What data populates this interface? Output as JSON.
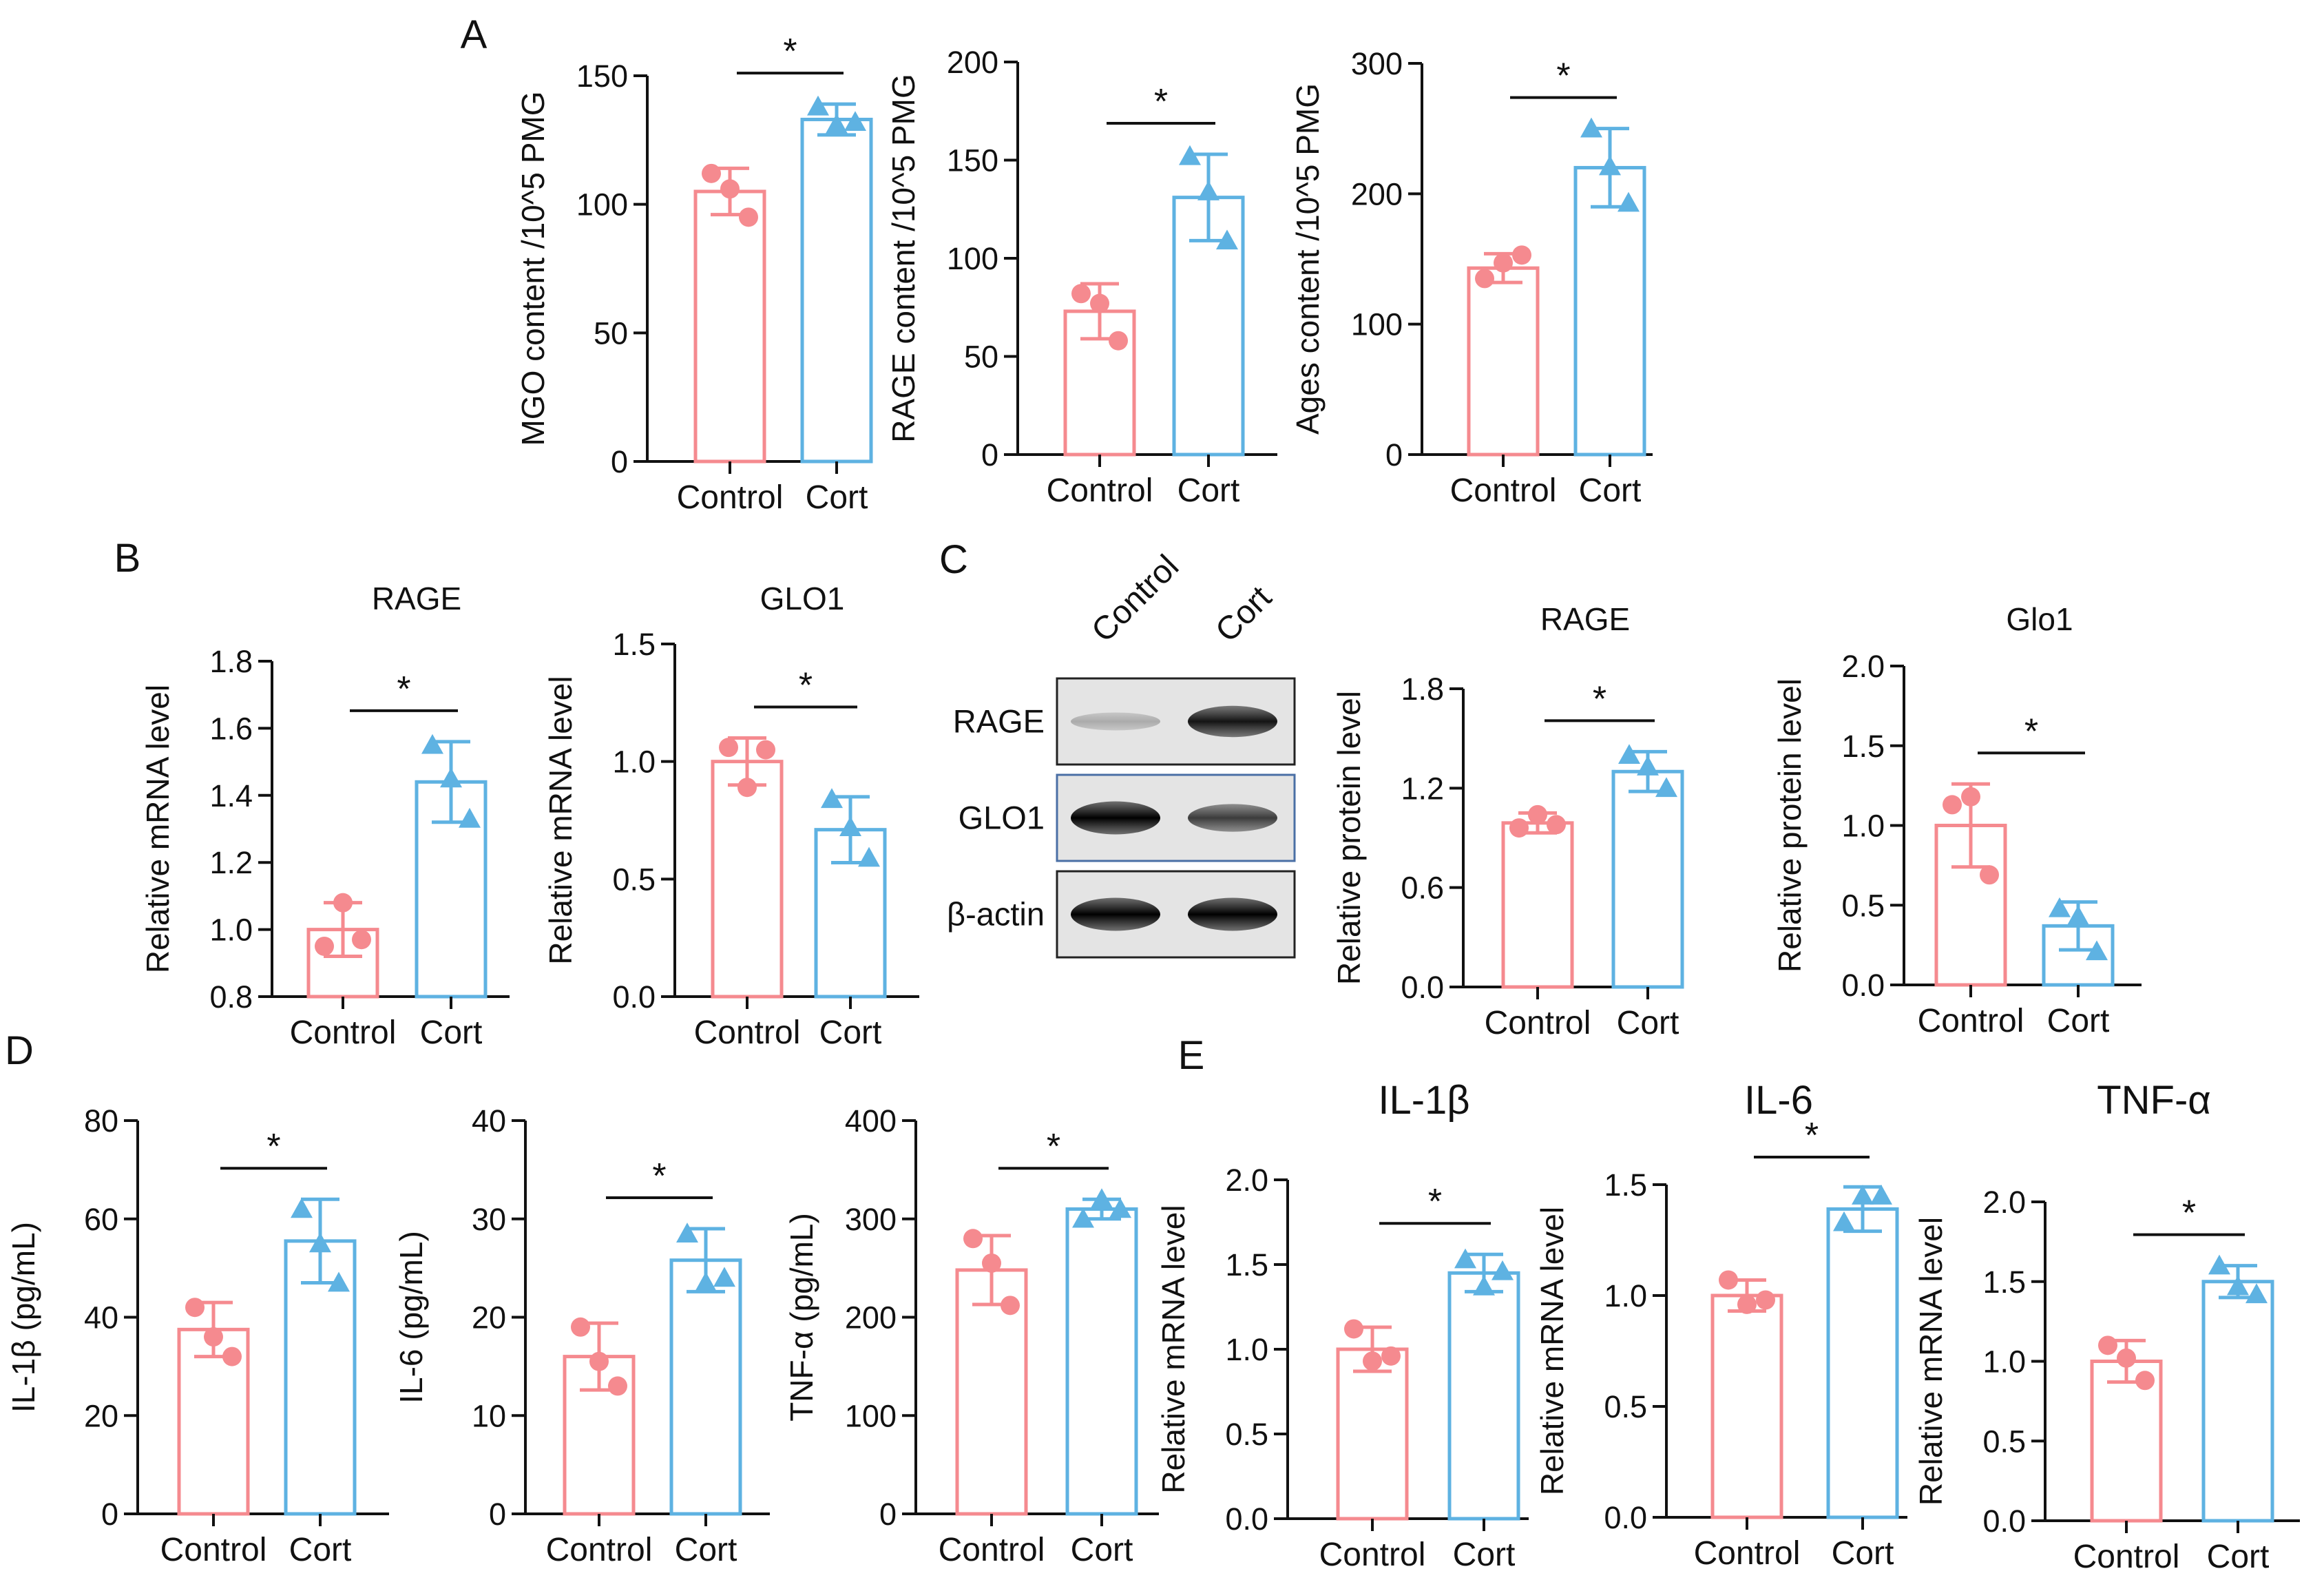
{
  "colors": {
    "control": "#f58a8f",
    "cort": "#5eb2e2"
  },
  "chart_data": [
    {
      "id": "A1",
      "panel": "A",
      "type": "bar",
      "title": "",
      "categories": [
        "Control",
        "Cort"
      ],
      "ylabel": "MGO content /10^5 PMG",
      "ylim": [
        0,
        150
      ],
      "yticks": [
        "0",
        "50",
        "100",
        "150"
      ],
      "tick_values": [
        0,
        50,
        100,
        150
      ],
      "values": [
        105,
        133
      ],
      "sd": [
        9,
        6
      ],
      "points": [
        [
          112,
          106,
          95
        ],
        [
          138,
          131,
          132
        ]
      ],
      "significance": "*"
    },
    {
      "id": "A2",
      "panel": "",
      "type": "bar",
      "title": "",
      "categories": [
        "Control",
        "Cort"
      ],
      "ylabel": "RAGE content /10^5 PMG",
      "ylim": [
        0,
        200
      ],
      "yticks": [
        "0",
        "50",
        "100",
        "150",
        "200"
      ],
      "tick_values": [
        0,
        50,
        100,
        150,
        200
      ],
      "values": [
        73,
        131
      ],
      "sd": [
        14,
        22
      ],
      "points": [
        [
          82,
          77,
          58
        ],
        [
          152,
          134,
          109
        ]
      ],
      "significance": "*"
    },
    {
      "id": "A3",
      "panel": "",
      "type": "bar",
      "title": "",
      "categories": [
        "Control",
        "Cort"
      ],
      "ylabel": "Ages content /10^5 PMG",
      "ylim": [
        0,
        300
      ],
      "yticks": [
        "0",
        "100",
        "200",
        "300"
      ],
      "tick_values": [
        0,
        100,
        200,
        300
      ],
      "values": [
        143,
        220
      ],
      "sd": [
        11,
        30
      ],
      "points": [
        [
          135,
          147,
          153
        ],
        [
          250,
          221,
          193
        ]
      ],
      "significance": "*"
    },
    {
      "id": "B1",
      "panel": "B",
      "type": "bar",
      "title": "RAGE",
      "categories": [
        "Control",
        "Cort"
      ],
      "ylabel": "Relative mRNA level",
      "ylim": [
        0.8,
        1.8
      ],
      "yticks": [
        "0.8",
        "1.0",
        "1.2",
        "1.4",
        "1.6",
        "1.8"
      ],
      "tick_values": [
        0.8,
        1.0,
        1.2,
        1.4,
        1.6,
        1.8
      ],
      "values": [
        1.0,
        1.44
      ],
      "sd": [
        0.08,
        0.12
      ],
      "points": [
        [
          0.95,
          1.08,
          0.97
        ],
        [
          1.55,
          1.45,
          1.33
        ]
      ],
      "significance": "*"
    },
    {
      "id": "B2",
      "panel": "",
      "type": "bar",
      "title": "GLO1",
      "categories": [
        "Control",
        "Cort"
      ],
      "ylabel": "Relative mRNA level",
      "ylim": [
        0.0,
        1.5
      ],
      "yticks": [
        "0.0",
        "0.5",
        "1.0",
        "1.5"
      ],
      "tick_values": [
        0.0,
        0.5,
        1.0,
        1.5
      ],
      "values": [
        1.0,
        0.71
      ],
      "sd": [
        0.1,
        0.14
      ],
      "points": [
        [
          1.06,
          0.89,
          1.05
        ],
        [
          0.84,
          0.72,
          0.59
        ]
      ],
      "significance": "*"
    },
    {
      "id": "C1",
      "panel": "",
      "type": "bar",
      "title": "RAGE",
      "categories": [
        "Control",
        "Cort"
      ],
      "ylabel": "Relative protein level",
      "ylim": [
        0.0,
        1.8
      ],
      "yticks": [
        "0.0",
        "0.6",
        "1.2",
        "1.8"
      ],
      "tick_values": [
        0.0,
        0.6,
        1.2,
        1.8
      ],
      "values": [
        0.99,
        1.3
      ],
      "sd": [
        0.06,
        0.12
      ],
      "points": [
        [
          0.96,
          1.04,
          0.98
        ],
        [
          1.4,
          1.33,
          1.2
        ]
      ],
      "significance": "*"
    },
    {
      "id": "C2",
      "panel": "",
      "type": "bar",
      "title": "Glo1",
      "categories": [
        "Control",
        "Cort"
      ],
      "ylabel": "Relative protein level",
      "ylim": [
        0.0,
        2.0
      ],
      "yticks": [
        "0.0",
        "0.5",
        "1.0",
        "1.5",
        "2.0"
      ],
      "tick_values": [
        0.0,
        0.5,
        1.0,
        1.5,
        2.0
      ],
      "values": [
        1.0,
        0.37
      ],
      "sd": [
        0.26,
        0.15
      ],
      "points": [
        [
          1.13,
          1.18,
          0.69
        ],
        [
          0.48,
          0.43,
          0.21
        ]
      ],
      "significance": "*"
    },
    {
      "id": "D1",
      "panel": "D",
      "type": "bar",
      "title": "",
      "categories": [
        "Control",
        "Cort"
      ],
      "ylabel": "IL-1β (pg/mL)",
      "ylim": [
        0,
        80
      ],
      "yticks": [
        "0",
        "20",
        "40",
        "60",
        "80"
      ],
      "tick_values": [
        0,
        20,
        40,
        60,
        80
      ],
      "values": [
        37.5,
        55.5
      ],
      "sd": [
        5.5,
        8.5
      ],
      "points": [
        [
          42,
          36,
          32
        ],
        [
          62,
          55,
          47
        ]
      ],
      "significance": "*"
    },
    {
      "id": "D2",
      "panel": "",
      "type": "bar",
      "title": "",
      "categories": [
        "Control",
        "Cort"
      ],
      "ylabel": "IL-6 (pg/mL)",
      "ylim": [
        0,
        40
      ],
      "yticks": [
        "0",
        "10",
        "20",
        "30",
        "40"
      ],
      "tick_values": [
        0,
        10,
        20,
        30,
        40
      ],
      "values": [
        16,
        25.8
      ],
      "sd": [
        3.4,
        3.2
      ],
      "points": [
        [
          19,
          15.5,
          13
        ],
        [
          28.5,
          23.5,
          24
        ]
      ],
      "significance": "*"
    },
    {
      "id": "D3",
      "panel": "",
      "type": "bar",
      "title": "",
      "categories": [
        "Control",
        "Cort"
      ],
      "ylabel": "TNF-α  (pg/mL)",
      "ylim": [
        0,
        400
      ],
      "yticks": [
        "0",
        "100",
        "200",
        "300",
        "400"
      ],
      "tick_values": [
        0,
        100,
        200,
        300,
        400
      ],
      "values": [
        248,
        310
      ],
      "sd": [
        35,
        10
      ],
      "points": [
        [
          280,
          255,
          212
        ],
        [
          300,
          320,
          310
        ]
      ],
      "significance": "*"
    },
    {
      "id": "E1",
      "panel": "E",
      "type": "bar",
      "title": "IL-1β",
      "categories": [
        "Control",
        "Cort"
      ],
      "ylabel": "Relative mRNA level",
      "ylim": [
        0.0,
        2.0
      ],
      "yticks": [
        "0.0",
        "0.5",
        "1.0",
        "1.5",
        "2.0"
      ],
      "tick_values": [
        0.0,
        0.5,
        1.0,
        1.5,
        2.0
      ],
      "values": [
        1.0,
        1.45
      ],
      "sd": [
        0.13,
        0.11
      ],
      "points": [
        [
          1.12,
          0.93,
          0.96
        ],
        [
          1.53,
          1.37,
          1.46
        ]
      ],
      "significance": "*"
    },
    {
      "id": "E2",
      "panel": "",
      "type": "bar",
      "title": "IL-6",
      "categories": [
        "Control",
        "Cort"
      ],
      "ylabel": "Relative mRNA level",
      "ylim": [
        0.0,
        1.5
      ],
      "yticks": [
        "0.0",
        "0.5",
        "1.0",
        "1.5"
      ],
      "tick_values": [
        0.0,
        0.5,
        1.0,
        1.5
      ],
      "values": [
        1.0,
        1.39
      ],
      "sd": [
        0.07,
        0.1
      ],
      "points": [
        [
          1.07,
          0.96,
          0.98
        ],
        [
          1.33,
          1.45,
          1.45
        ]
      ],
      "significance": "*"
    },
    {
      "id": "E3",
      "panel": "",
      "type": "bar",
      "title": "TNF-α",
      "categories": [
        "Control",
        "Cort"
      ],
      "ylabel": "Relative mRNA level",
      "ylim": [
        0.0,
        2.0
      ],
      "yticks": [
        "0.0",
        "0.5",
        "1.0",
        "1.5",
        "2.0"
      ],
      "tick_values": [
        0.0,
        0.5,
        1.0,
        1.5,
        2.0
      ],
      "values": [
        1.0,
        1.5
      ],
      "sd": [
        0.13,
        0.1
      ],
      "points": [
        [
          1.1,
          1.02,
          0.88
        ],
        [
          1.6,
          1.47,
          1.42
        ]
      ],
      "significance": "*"
    }
  ],
  "blot": {
    "panel": "C",
    "lanes": [
      "Control",
      "Cort"
    ],
    "rows": [
      {
        "label": "RAGE",
        "bands": [
          0.15,
          0.9
        ]
      },
      {
        "label": "GLO1",
        "bands": [
          1.0,
          0.7
        ]
      },
      {
        "label": "β-actin",
        "bands": [
          1.0,
          1.0
        ]
      }
    ]
  }
}
